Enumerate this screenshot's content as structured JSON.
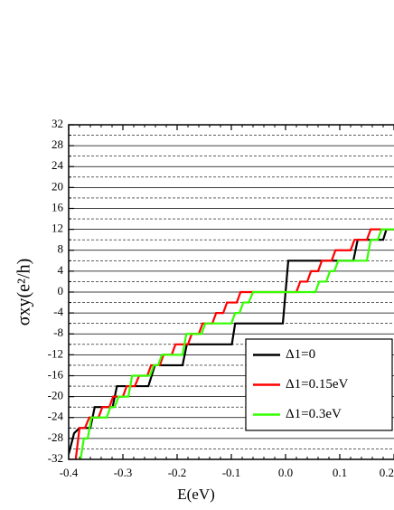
{
  "chart_data": {
    "type": "line",
    "x_label": "E(eV)",
    "y_label": "σxy(e²/h)",
    "xlim": [
      -0.4,
      0.2
    ],
    "xticks": [
      -0.4,
      -0.3,
      -0.2,
      -0.1,
      {
        "value": 0,
        "label": "0.0"
      },
      0.1,
      0.2
    ],
    "ylim": [
      -32,
      32
    ],
    "yticks": [
      -32,
      -28,
      -24,
      -20,
      -16,
      -12,
      -8,
      -4,
      0,
      4,
      8,
      12,
      16,
      20,
      24,
      28,
      32
    ],
    "grid": true,
    "legend": "lower right",
    "series": [
      {
        "name": "Δ1=0",
        "color": "#000000",
        "x": [
          -0.4,
          -0.39,
          -0.38,
          -0.36,
          -0.352,
          -0.319,
          -0.311,
          -0.253,
          -0.241,
          -0.19,
          -0.182,
          -0.099,
          -0.093,
          -0.005,
          0.005,
          0.125,
          0.133,
          0.18,
          0.186,
          0.2
        ],
        "values": [
          -31,
          -27,
          -26,
          -26,
          -22,
          -22,
          -18,
          -18,
          -14,
          -14,
          -10,
          -10,
          -6,
          -6,
          6,
          6,
          10,
          10,
          12,
          12
        ]
      },
      {
        "name": "Δ1=0.15eV",
        "color": "#ff0000",
        "x": [
          -0.387,
          -0.38,
          -0.37,
          -0.362,
          -0.345,
          -0.338,
          -0.325,
          -0.318,
          -0.3,
          -0.293,
          -0.278,
          -0.27,
          -0.255,
          -0.248,
          -0.232,
          -0.225,
          -0.21,
          -0.203,
          -0.18,
          -0.173,
          -0.16,
          -0.153,
          -0.135,
          -0.128,
          -0.115,
          -0.108,
          -0.09,
          -0.083,
          0.02,
          0.027,
          0.04,
          0.047,
          0.06,
          0.067,
          0.085,
          0.092,
          0.12,
          0.127,
          0.15,
          0.157,
          0.2
        ],
        "values": [
          -32,
          -26,
          -26,
          -24,
          -24,
          -22,
          -22,
          -20,
          -20,
          -18,
          -18,
          -16,
          -16,
          -14,
          -14,
          -12,
          -12,
          -10,
          -10,
          -8,
          -8,
          -6,
          -6,
          -4,
          -4,
          -2,
          -2,
          0,
          0,
          2,
          2,
          4,
          4,
          6,
          6,
          8,
          8,
          10,
          10,
          12,
          12
        ]
      },
      {
        "name": "Δ1=0.3eV",
        "color": "#33ff00",
        "x": [
          -0.378,
          -0.372,
          -0.365,
          -0.358,
          -0.33,
          -0.323,
          -0.315,
          -0.308,
          -0.29,
          -0.283,
          -0.25,
          -0.243,
          -0.235,
          -0.228,
          -0.19,
          -0.183,
          -0.155,
          -0.148,
          -0.1,
          -0.093,
          -0.085,
          -0.078,
          -0.068,
          -0.06,
          0.055,
          0.062,
          0.075,
          0.082,
          0.09,
          0.097,
          0.15,
          0.157,
          0.17,
          0.177,
          0.2
        ],
        "values": [
          -32,
          -28,
          -28,
          -24,
          -24,
          -22,
          -22,
          -20,
          -20,
          -16,
          -16,
          -14,
          -14,
          -12,
          -12,
          -8,
          -8,
          -6,
          -6,
          -4,
          -4,
          -2,
          -2,
          0,
          0,
          2,
          2,
          4,
          4,
          6,
          6,
          10,
          10,
          12,
          12
        ]
      }
    ]
  }
}
